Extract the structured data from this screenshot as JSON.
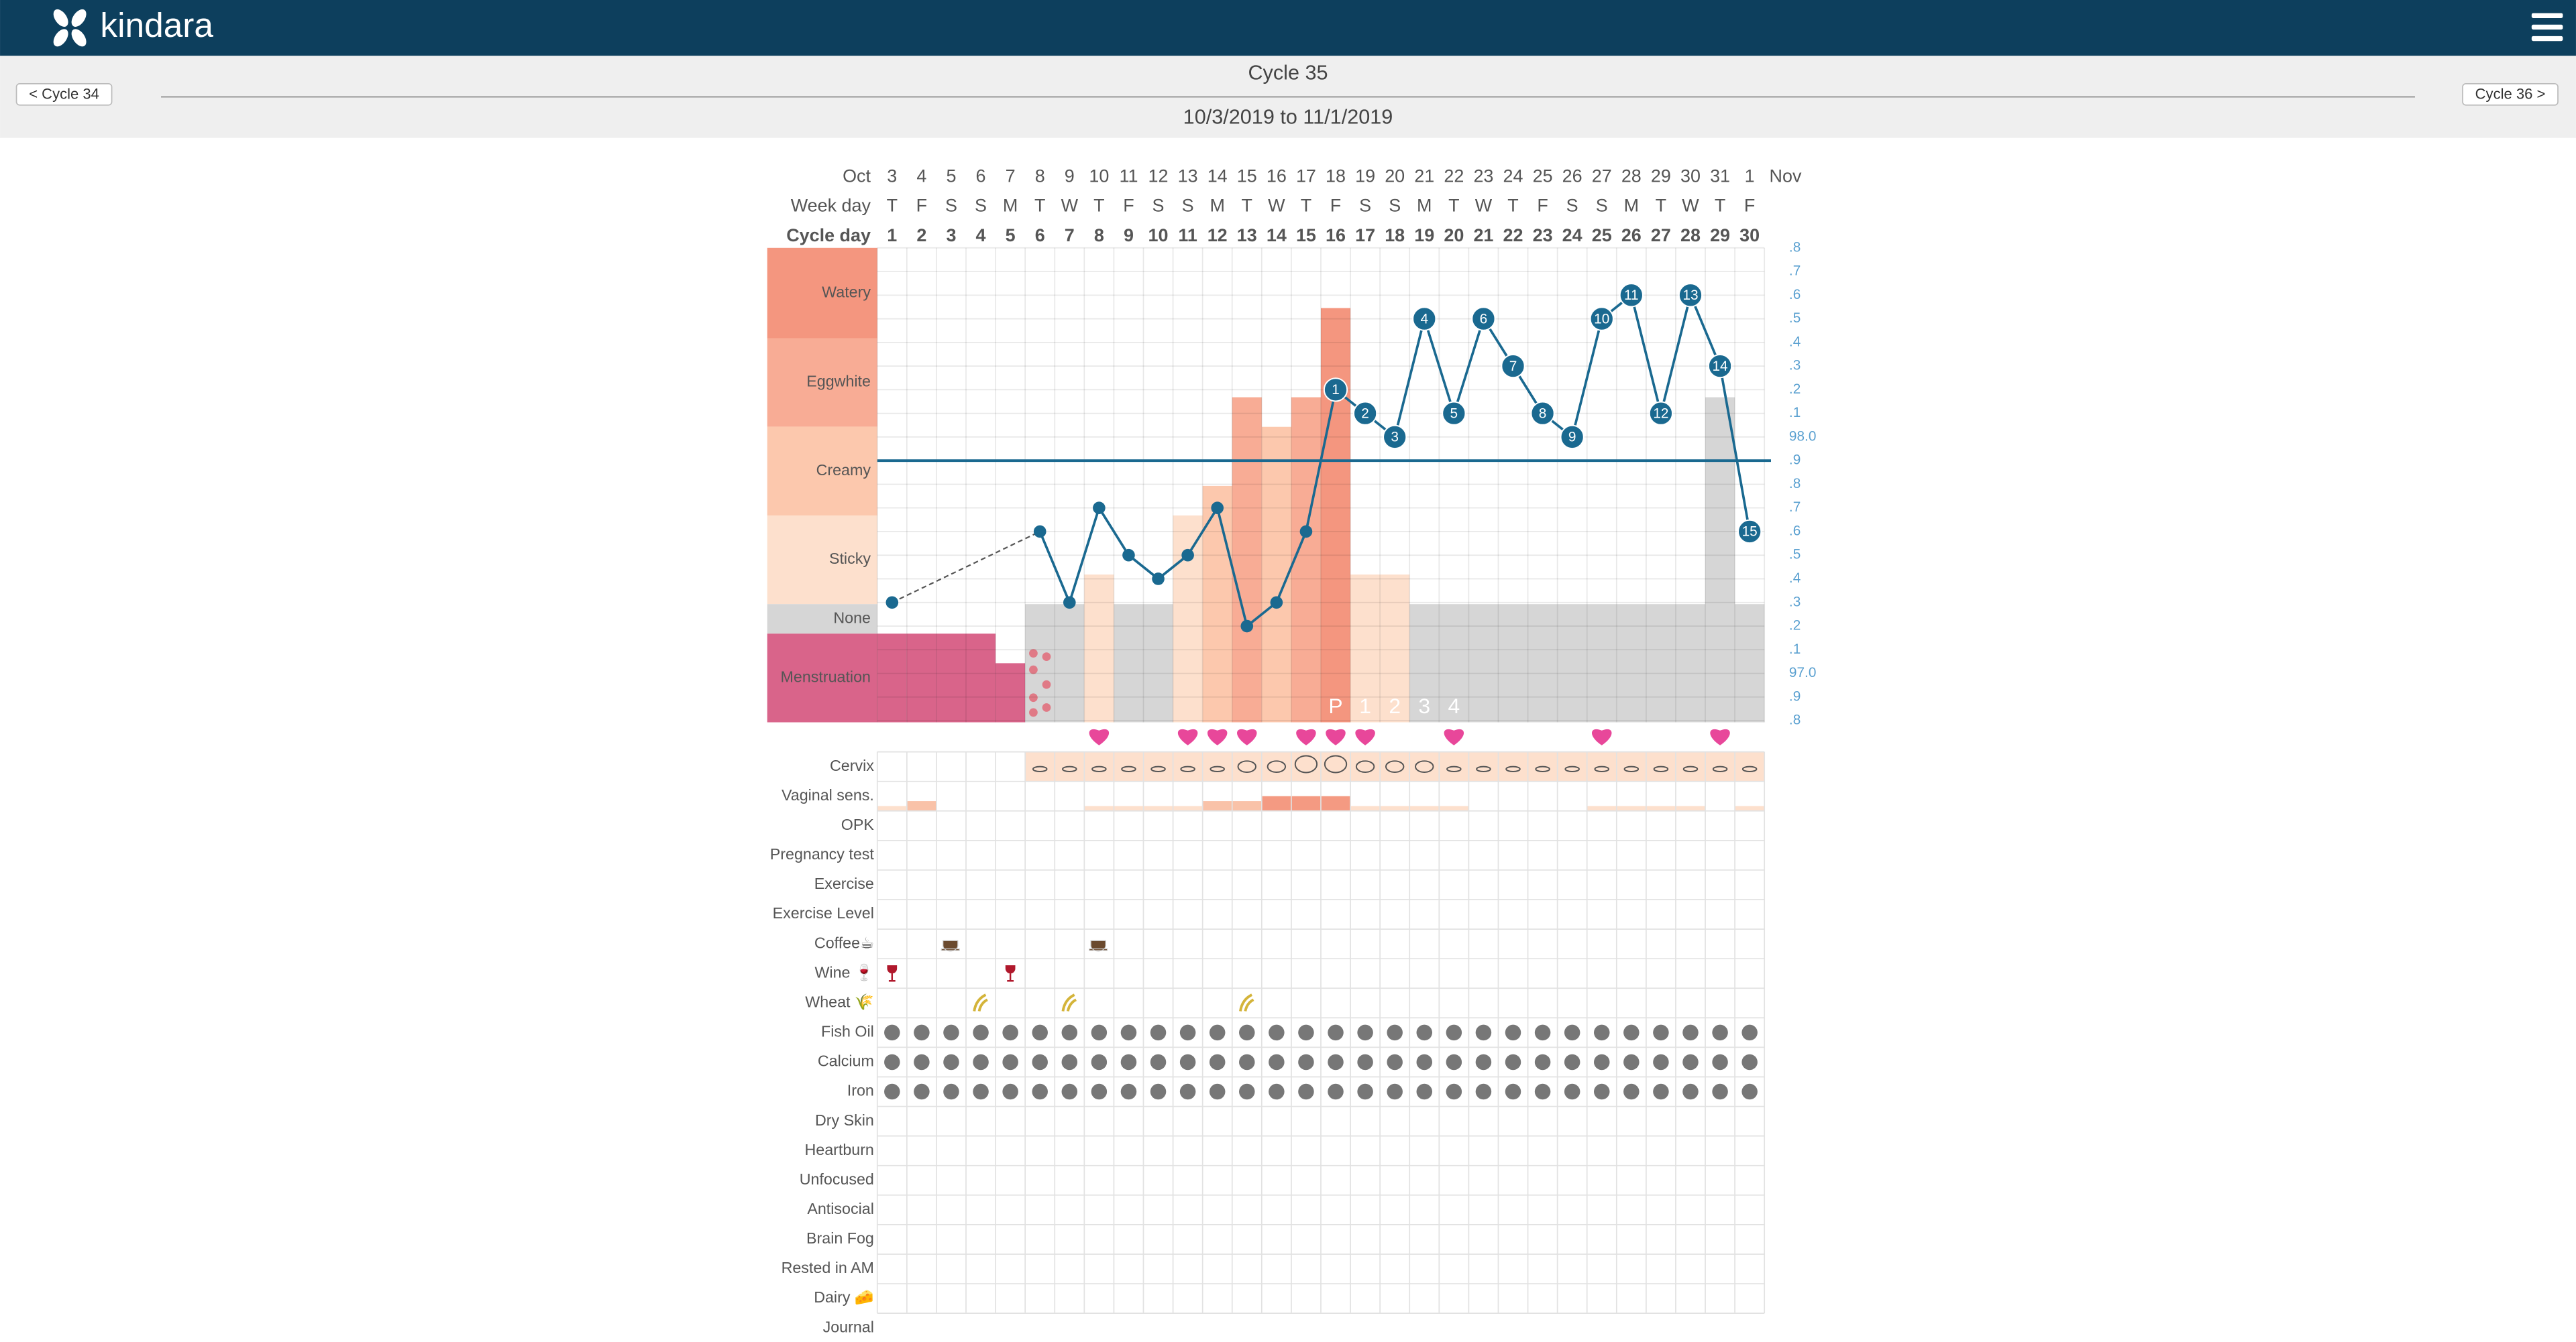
{
  "header": {
    "brand": "kindara"
  },
  "nav": {
    "prev": "< Cycle 34",
    "title": "Cycle 35",
    "range": "10/3/2019 to 11/1/2019",
    "next": "Cycle 36 >"
  },
  "chart": {
    "row_titles": {
      "month": "Oct",
      "weekday": "Week day",
      "cycle_day": "Cycle day",
      "end_month": "Nov"
    },
    "dates": [
      3,
      4,
      5,
      6,
      7,
      8,
      9,
      10,
      11,
      12,
      13,
      14,
      15,
      16,
      17,
      18,
      19,
      20,
      21,
      22,
      23,
      24,
      25,
      26,
      27,
      28,
      29,
      30,
      31,
      1
    ],
    "weekdays": [
      "T",
      "F",
      "S",
      "S",
      "M",
      "T",
      "W",
      "T",
      "F",
      "S",
      "S",
      "M",
      "T",
      "W",
      "T",
      "F",
      "S",
      "S",
      "M",
      "T",
      "W",
      "T",
      "F",
      "S",
      "S",
      "M",
      "T",
      "W",
      "T",
      "F"
    ],
    "cycle_days": [
      1,
      2,
      3,
      4,
      5,
      6,
      7,
      8,
      9,
      10,
      11,
      12,
      13,
      14,
      15,
      16,
      17,
      18,
      19,
      20,
      21,
      22,
      23,
      24,
      25,
      26,
      27,
      28,
      29,
      30
    ],
    "fluid_bands": [
      {
        "label": "Watery",
        "color": "#f4967f"
      },
      {
        "label": "Eggwhite",
        "color": "#f8ac95"
      },
      {
        "label": "Creamy",
        "color": "#fcc8ad"
      },
      {
        "label": "Sticky",
        "color": "#fde0cd"
      },
      {
        "label": "None",
        "color": "#d6d6d6"
      },
      {
        "label": "Menstruation",
        "color": "#d9648a"
      }
    ],
    "fluid_types": [
      "Menstruation",
      "Menstruation",
      "Menstruation",
      "Menstruation",
      "Menstruation",
      "None",
      "None",
      "Sticky",
      "None",
      "None",
      "Sticky",
      "Creamy",
      "Eggwhite",
      "Creamy",
      "Eggwhite",
      "Watery",
      "Sticky",
      "Sticky",
      "None",
      "None",
      "None",
      "None",
      "None",
      "None",
      "None",
      "None",
      "None",
      "None",
      "Eggwhite",
      "None"
    ],
    "fluid_amounts": [
      3,
      3,
      3,
      3,
      2,
      null,
      null,
      1,
      null,
      null,
      3,
      1,
      1,
      3,
      1,
      1,
      1,
      1,
      null,
      null,
      null,
      null,
      null,
      null,
      null,
      null,
      null,
      null,
      1,
      null
    ],
    "spotting_days": [
      6
    ],
    "muted_days": [
      29
    ],
    "muted_color": "#d6d6d6",
    "temp_lim": [
      96.8,
      98.8
    ],
    "temp_ticks": [
      {
        "value": 98.8,
        "label": ".8"
      },
      {
        "value": 98.7,
        "label": ".7"
      },
      {
        "value": 98.6,
        "label": ".6"
      },
      {
        "value": 98.5,
        "label": ".5"
      },
      {
        "value": 98.4,
        "label": ".4"
      },
      {
        "value": 98.3,
        "label": ".3"
      },
      {
        "value": 98.2,
        "label": ".2"
      },
      {
        "value": 98.1,
        "label": ".1"
      },
      {
        "value": 98.0,
        "label": "98.0"
      },
      {
        "value": 97.9,
        "label": ".9"
      },
      {
        "value": 97.8,
        "label": ".8"
      },
      {
        "value": 97.7,
        "label": ".7"
      },
      {
        "value": 97.6,
        "label": ".6"
      },
      {
        "value": 97.5,
        "label": ".5"
      },
      {
        "value": 97.4,
        "label": ".4"
      },
      {
        "value": 97.3,
        "label": ".3"
      },
      {
        "value": 97.2,
        "label": ".2"
      },
      {
        "value": 97.1,
        "label": ".1"
      },
      {
        "value": 97.0,
        "label": "97.0"
      },
      {
        "value": 96.9,
        "label": ".9"
      },
      {
        "value": 96.8,
        "label": ".8"
      }
    ],
    "temperatures": [
      97.3,
      null,
      null,
      null,
      null,
      97.6,
      97.3,
      97.7,
      97.5,
      97.4,
      97.5,
      97.7,
      97.2,
      97.3,
      97.6,
      98.2,
      98.1,
      98.0,
      98.5,
      98.1,
      98.5,
      98.3,
      98.1,
      98.0,
      98.5,
      98.6,
      98.1,
      98.6,
      98.3,
      97.6
    ],
    "point_labels": [
      null,
      null,
      null,
      null,
      null,
      null,
      null,
      null,
      null,
      null,
      null,
      null,
      null,
      null,
      null,
      "1",
      "2",
      "3",
      "4",
      "5",
      "6",
      "7",
      "8",
      "9",
      "10",
      "11",
      "12",
      "13",
      "14",
      "15"
    ],
    "coverline": 97.9,
    "line_color": "#1a6990",
    "peak_labels": [
      null,
      null,
      null,
      null,
      null,
      null,
      null,
      null,
      null,
      null,
      null,
      null,
      null,
      null,
      null,
      "P",
      "1",
      "2",
      "3",
      "4",
      null,
      null,
      null,
      null,
      null,
      null,
      null,
      null,
      null,
      null
    ],
    "intercourse_days": [
      8,
      11,
      12,
      13,
      15,
      16,
      17,
      20,
      25,
      29
    ],
    "rows": [
      {
        "label": "Cervix",
        "levels": [
          null,
          null,
          null,
          null,
          null,
          1,
          1,
          1,
          1,
          1,
          1,
          1,
          2,
          2,
          3,
          3,
          2,
          2,
          2,
          1,
          1,
          1,
          1,
          1,
          1,
          1,
          1,
          1,
          1,
          1
        ],
        "mark": "cervix"
      },
      {
        "label": "Vaginal sens.",
        "levels": [
          1,
          2,
          0,
          0,
          0,
          0,
          0,
          1,
          1,
          1,
          1,
          2,
          2,
          3,
          3,
          3,
          1,
          1,
          1,
          1,
          0,
          0,
          0,
          0,
          1,
          1,
          1,
          1,
          0,
          1
        ],
        "mark": "sensation"
      },
      {
        "label": "OPK"
      },
      {
        "label": "Pregnancy test"
      },
      {
        "label": "Exercise"
      },
      {
        "label": "Exercise Level"
      },
      {
        "label": "Coffee☕",
        "days": [
          3,
          8
        ],
        "mark": "coffee"
      },
      {
        "label": "Wine 🍷",
        "days": [
          1,
          5
        ],
        "mark": "wine"
      },
      {
        "label": "Wheat 🌾",
        "days": [
          4,
          7,
          13
        ],
        "mark": "wheat"
      },
      {
        "label": "Fish Oil",
        "days": [
          1,
          2,
          3,
          4,
          5,
          6,
          7,
          8,
          9,
          10,
          11,
          12,
          13,
          14,
          15,
          16,
          17,
          18,
          19,
          20,
          21,
          22,
          23,
          24,
          25,
          26,
          27,
          28,
          29,
          30
        ],
        "mark": "dot"
      },
      {
        "label": "Calcium",
        "days": [
          1,
          2,
          3,
          4,
          5,
          6,
          7,
          8,
          9,
          10,
          11,
          12,
          13,
          14,
          15,
          16,
          17,
          18,
          19,
          20,
          21,
          22,
          23,
          24,
          25,
          26,
          27,
          28,
          29,
          30
        ],
        "mark": "dot"
      },
      {
        "label": "Iron",
        "days": [
          1,
          2,
          3,
          4,
          5,
          6,
          7,
          8,
          9,
          10,
          11,
          12,
          13,
          14,
          15,
          16,
          17,
          18,
          19,
          20,
          21,
          22,
          23,
          24,
          25,
          26,
          27,
          28,
          29,
          30
        ],
        "mark": "dot"
      },
      {
        "label": "Dry Skin"
      },
      {
        "label": "Heartburn"
      },
      {
        "label": "Unfocused"
      },
      {
        "label": "Antisocial"
      },
      {
        "label": "Brain Fog"
      },
      {
        "label": "Rested in AM"
      },
      {
        "label": "Dairy 🧀"
      },
      {
        "label": "Journal"
      }
    ]
  }
}
